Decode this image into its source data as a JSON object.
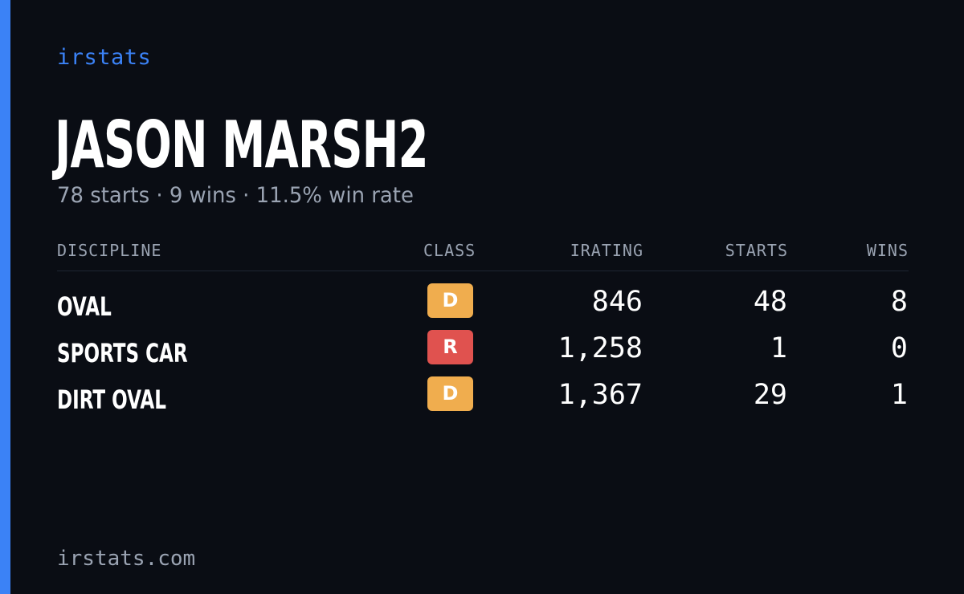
{
  "brand": "irstats",
  "driver_name": "JASON MARSH2",
  "summary": "78 starts · 9 wins · 11.5% win rate",
  "table": {
    "headers": {
      "discipline": "DISCIPLINE",
      "class": "CLASS",
      "irating": "IRATING",
      "starts": "STARTS",
      "wins": "WINS"
    },
    "rows": [
      {
        "discipline": "OVAL",
        "class": "D",
        "class_color": "#f0ad4e",
        "irating": "846",
        "starts": "48",
        "wins": "8"
      },
      {
        "discipline": "SPORTS CAR",
        "class": "R",
        "class_color": "#e0524f",
        "irating": "1,258",
        "starts": "1",
        "wins": "0"
      },
      {
        "discipline": "DIRT OVAL",
        "class": "D",
        "class_color": "#f0ad4e",
        "irating": "1,367",
        "starts": "29",
        "wins": "1"
      }
    ]
  },
  "footer": "irstats.com",
  "colors": {
    "background": "#0a0d14",
    "accent": "#3b82f6",
    "muted_text": "#9aa3b2"
  }
}
